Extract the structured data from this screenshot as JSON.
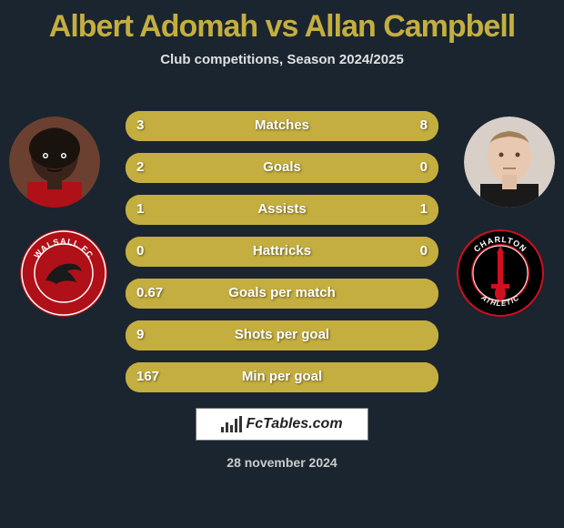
{
  "header": {
    "title": "Albert Adomah vs Allan Campbell",
    "title_fontsize": 34,
    "title_color": "#c4ae3f",
    "subtitle": "Club competitions, Season 2024/2025"
  },
  "avatars": {
    "left_bg": "#6b3a2e",
    "right_bg": "#e8d8d0"
  },
  "crests": {
    "left": {
      "outer_color": "#1a2530",
      "ring_color": "#b01018",
      "inner_color": "#b01018",
      "text_top": "WALSALL FC",
      "swift_color": "#111"
    },
    "right": {
      "outer_color": "#1a2530",
      "ring_color": "#d01020",
      "inner_color": "#000",
      "sword_color": "#d01020",
      "text_top": "CHARLTON",
      "text_bottom": "ATHLETIC"
    }
  },
  "comparison": {
    "bar_bg": "#a08a2a",
    "fill_color": "#c4ae3f",
    "rows": [
      {
        "label": "Matches",
        "left": "3",
        "right": "8",
        "l_pct": 27,
        "r_pct": 73
      },
      {
        "label": "Goals",
        "left": "2",
        "right": "0",
        "l_pct": 100,
        "r_pct": 0
      },
      {
        "label": "Assists",
        "left": "1",
        "right": "1",
        "l_pct": 50,
        "r_pct": 50
      },
      {
        "label": "Hattricks",
        "left": "0",
        "right": "0",
        "l_pct": 50,
        "r_pct": 50
      },
      {
        "label": "Goals per match",
        "left": "0.67",
        "right": "",
        "l_pct": 100,
        "r_pct": 0
      },
      {
        "label": "Shots per goal",
        "left": "9",
        "right": "",
        "l_pct": 100,
        "r_pct": 0
      },
      {
        "label": "Min per goal",
        "left": "167",
        "right": "",
        "l_pct": 100,
        "r_pct": 0
      }
    ]
  },
  "footer": {
    "brand": "FcTables.com",
    "date": "28 november 2024"
  },
  "theme": {
    "bg": "#1a2530",
    "accent": "#c4ae3f"
  }
}
